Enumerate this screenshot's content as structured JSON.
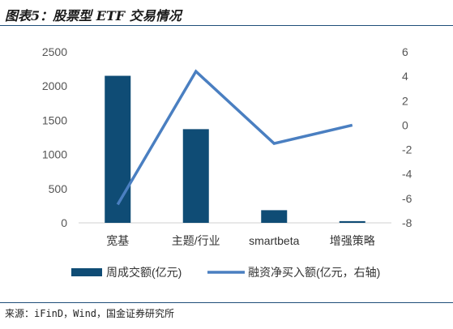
{
  "figure_title": "图表5：股票型 ETF 交易情况",
  "source": "来源：iFinD，Wind，国金证券研究所",
  "colors": {
    "bar": "#0f4c75",
    "line": "#4a7fc1",
    "axis": "#d0d0d0",
    "text": "#555555"
  },
  "chart_data": {
    "type": "bar+line",
    "categories": [
      "宽基",
      "主题/行业",
      "smartbeta",
      "增强策略"
    ],
    "series": [
      {
        "name": "周成交额(亿元)",
        "type": "bar",
        "axis": "left",
        "values": [
          2150,
          1370,
          185,
          25
        ]
      },
      {
        "name": "融资净买入额(亿元，右轴)",
        "type": "line",
        "axis": "right",
        "values": [
          -6.5,
          4.4,
          -1.5,
          0.0
        ]
      }
    ],
    "y_left": {
      "min": 0,
      "max": 2500,
      "ticks": [
        0,
        500,
        1000,
        1500,
        2000,
        2500
      ]
    },
    "y_right": {
      "min": -8,
      "max": 6,
      "ticks": [
        -8,
        -6,
        -4,
        -2,
        0,
        2,
        4,
        6
      ]
    },
    "legend_position": "bottom"
  }
}
